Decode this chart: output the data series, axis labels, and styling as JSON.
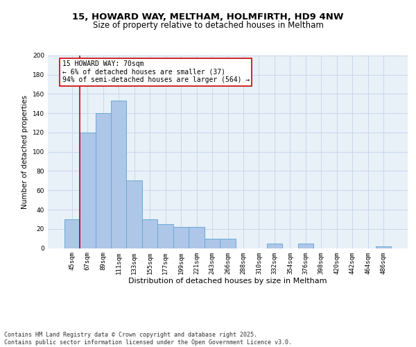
{
  "title_line1": "15, HOWARD WAY, MELTHAM, HOLMFIRTH, HD9 4NW",
  "title_line2": "Size of property relative to detached houses in Meltham",
  "xlabel": "Distribution of detached houses by size in Meltham",
  "ylabel": "Number of detached properties",
  "categories": [
    "45sqm",
    "67sqm",
    "89sqm",
    "111sqm",
    "133sqm",
    "155sqm",
    "177sqm",
    "199sqm",
    "221sqm",
    "243sqm",
    "266sqm",
    "288sqm",
    "310sqm",
    "332sqm",
    "354sqm",
    "376sqm",
    "398sqm",
    "420sqm",
    "442sqm",
    "464sqm",
    "486sqm"
  ],
  "values": [
    30,
    120,
    140,
    153,
    70,
    30,
    25,
    22,
    22,
    10,
    10,
    0,
    0,
    5,
    0,
    5,
    0,
    0,
    0,
    0,
    2
  ],
  "bar_color": "#aec6e8",
  "bar_edge_color": "#6aaad4",
  "grid_color": "#c8d8ea",
  "background_color": "#e8f0f8",
  "vline_color": "#cc0000",
  "annotation_text": "15 HOWARD WAY: 70sqm\n← 6% of detached houses are smaller (37)\n94% of semi-detached houses are larger (564) →",
  "annotation_box_color": "#ffffff",
  "annotation_box_edge": "#cc0000",
  "footer_text": "Contains HM Land Registry data © Crown copyright and database right 2025.\nContains public sector information licensed under the Open Government Licence v3.0.",
  "ylim": [
    0,
    200
  ],
  "yticks": [
    0,
    20,
    40,
    60,
    80,
    100,
    120,
    140,
    160,
    180,
    200
  ],
  "title1_fontsize": 9.5,
  "title2_fontsize": 8.5,
  "xlabel_fontsize": 8,
  "ylabel_fontsize": 7.5,
  "tick_fontsize": 6.5,
  "annot_fontsize": 7,
  "footer_fontsize": 6
}
